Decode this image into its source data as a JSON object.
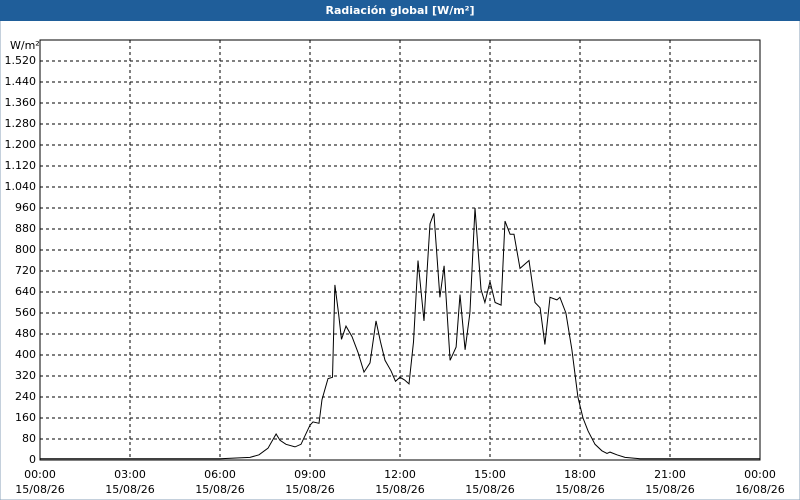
{
  "chart_data": {
    "type": "line",
    "title": "Radiación global [W/m²]",
    "y_label": "W/m²",
    "color": "#000000",
    "grid": true,
    "xlim": [
      0,
      24
    ],
    "ylim": [
      0,
      1600
    ],
    "yticks": [
      0,
      80,
      160,
      240,
      320,
      400,
      480,
      560,
      640,
      720,
      800,
      880,
      960,
      {
        "value": 1040,
        "label": "1.040"
      },
      {
        "value": 1120,
        "label": "1.120"
      },
      {
        "value": 1200,
        "label": "1.200"
      },
      {
        "value": 1280,
        "label": "1.280"
      },
      {
        "value": 1360,
        "label": "1.360"
      },
      {
        "value": 1440,
        "label": "1.440"
      },
      {
        "value": 1520,
        "label": "1.520"
      }
    ],
    "xticks": [
      {
        "value": 0,
        "label": "00:00"
      },
      {
        "value": 3,
        "label": "03:00"
      },
      {
        "value": 6,
        "label": "06:00"
      },
      {
        "value": 9,
        "label": "09:00"
      },
      {
        "value": 12,
        "label": "12:00"
      },
      {
        "value": 15,
        "label": "15:00"
      },
      {
        "value": 18,
        "label": "18:00"
      },
      {
        "value": 21,
        "label": "21:00"
      },
      {
        "value": 24,
        "label": "00:00"
      }
    ],
    "xtick_dates": [
      "15/08/26",
      "15/08/26",
      "15/08/26",
      "15/08/26",
      "15/08/26",
      "15/08/26",
      "15/08/26",
      "15/08/26",
      "16/08/26"
    ],
    "x": [
      0,
      3,
      6,
      7.0,
      7.3,
      7.6,
      7.87,
      8.0,
      8.2,
      8.5,
      8.7,
      9.0,
      9.1,
      9.3,
      9.4,
      9.6,
      9.75,
      9.83,
      9.95,
      10.05,
      10.2,
      10.4,
      10.6,
      10.8,
      11.0,
      11.1,
      11.2,
      11.35,
      11.5,
      11.7,
      11.85,
      12.0,
      12.15,
      12.3,
      12.45,
      12.6,
      12.8,
      13.0,
      13.13,
      13.23,
      13.33,
      13.47,
      13.67,
      13.87,
      14.0,
      14.17,
      14.33,
      14.5,
      14.7,
      14.83,
      15.0,
      15.17,
      15.37,
      15.5,
      15.67,
      15.8,
      16.0,
      16.3,
      16.5,
      16.67,
      16.83,
      17.0,
      17.23,
      17.33,
      17.53,
      17.73,
      17.93,
      18.1,
      18.27,
      18.5,
      18.73,
      18.9,
      19.0,
      19.23,
      19.5,
      20.0,
      24
    ],
    "values": [
      5,
      5,
      5,
      10,
      20,
      45,
      99,
      75,
      60,
      50,
      60,
      133,
      145,
      140,
      230,
      310,
      315,
      667,
      560,
      460,
      510,
      470,
      410,
      335,
      370,
      450,
      530,
      450,
      380,
      340,
      300,
      315,
      305,
      290,
      450,
      760,
      530,
      900,
      940,
      780,
      620,
      740,
      380,
      430,
      630,
      420,
      560,
      960,
      650,
      600,
      680,
      600,
      590,
      910,
      860,
      860,
      730,
      760,
      600,
      580,
      440,
      620,
      610,
      620,
      560,
      420,
      240,
      160,
      110,
      60,
      35,
      25,
      30,
      20,
      10,
      5,
      5
    ]
  }
}
